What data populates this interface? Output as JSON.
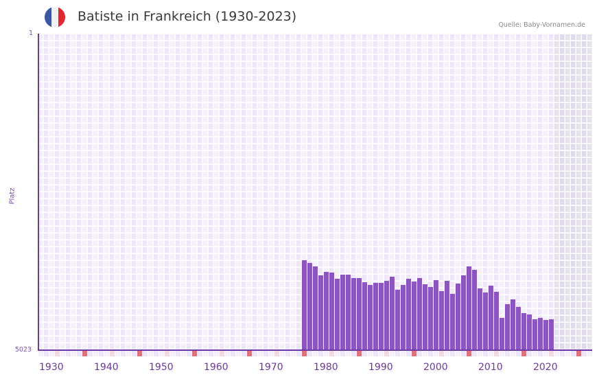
{
  "header": {
    "title": "Batiste in Frankreich (1930-2023)",
    "source": "Quelle: Baby-Vornamen.de",
    "flag_colors": [
      "#3a56a8",
      "#f2f2f2",
      "#e4262f"
    ]
  },
  "axis": {
    "y_top_label": "1",
    "y_bottom_label": "5023",
    "y_title": "Platz",
    "x_labels": [
      "1930",
      "1940",
      "1950",
      "1960",
      "1970",
      "1980",
      "1990",
      "2000",
      "2010",
      "2020"
    ]
  },
  "colors": {
    "bar": "#8b55c6",
    "axis": "#6a3aa2",
    "grid_a": "#f3effb",
    "grid_b": "#ece6f8",
    "future_a": "#e6e2ef",
    "future_b": "#dfdaec",
    "marker_strong": "#e57079",
    "marker_light": "#f5d8e0"
  },
  "chart_data": {
    "type": "bar",
    "title": "Batiste in Frankreich (1930-2023)",
    "xlabel": "",
    "ylabel": "Platz",
    "ylim": [
      5023,
      1
    ],
    "y_inverted": true,
    "x_range": [
      1930,
      2030
    ],
    "grid": true,
    "categories": [
      1978,
      1979,
      1980,
      1981,
      1982,
      1983,
      1984,
      1985,
      1986,
      1987,
      1988,
      1989,
      1990,
      1991,
      1992,
      1993,
      1994,
      1995,
      1996,
      1997,
      1998,
      1999,
      2000,
      2001,
      2002,
      2003,
      2004,
      2005,
      2006,
      2007,
      2008,
      2009,
      2010,
      2011,
      2012,
      2013,
      2014,
      2015,
      2016,
      2017,
      2018,
      2019,
      2020,
      2021,
      2022,
      2023
    ],
    "values": [
      3593,
      3637,
      3691,
      3833,
      3779,
      3790,
      3888,
      3822,
      3822,
      3877,
      3877,
      3942,
      3986,
      3953,
      3953,
      3920,
      3855,
      4062,
      3986,
      3888,
      3931,
      3877,
      3975,
      4019,
      3910,
      4084,
      3920,
      4128,
      3964,
      3833,
      3691,
      3746,
      4041,
      4106,
      3997,
      4095,
      4510,
      4292,
      4215,
      4335,
      4434,
      4456,
      4532,
      4510,
      4543,
      4532
    ]
  }
}
